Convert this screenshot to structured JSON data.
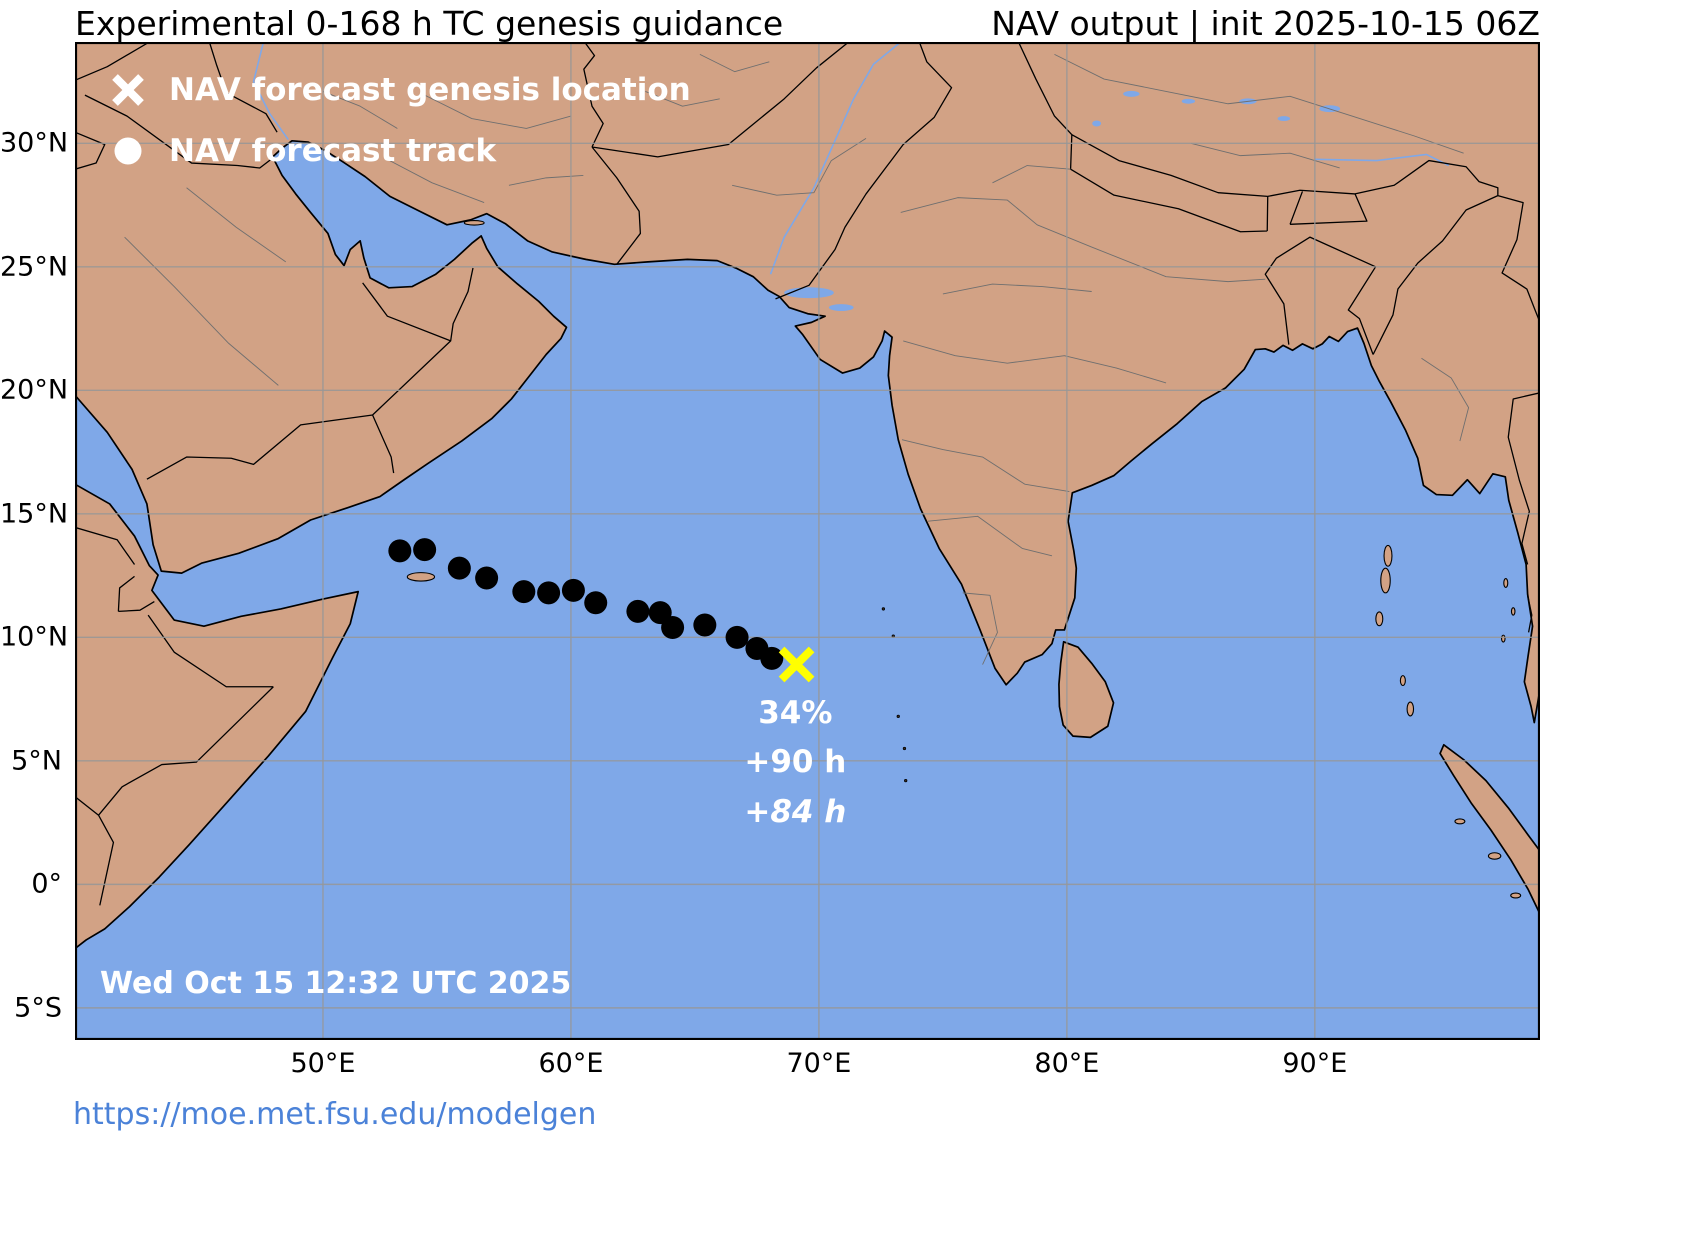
{
  "header": {
    "title": "Experimental 0-168 h TC genesis guidance",
    "right": "NAV output | init 2025-10-15 06Z"
  },
  "legend": {
    "genesis_label": "NAV forecast genesis location",
    "track_label": "NAV forecast track"
  },
  "annotations": {
    "probability": "34%",
    "genesis_hour": "+90 h",
    "track_hour": "+84 h",
    "timestamp": "Wed Oct 15 12:32 UTC 2025"
  },
  "footer": {
    "url": "https://moe.met.fsu.edu/modelgen"
  },
  "colors": {
    "ocean": "#7fa8e8",
    "land": "#d2a285",
    "grid": "#979797",
    "track": "#000000",
    "genesis_marker": "#ffff00",
    "legend_marker": "#ffffff",
    "link": "#4b82d8"
  },
  "map": {
    "extent": {
      "lon_min": 40.0,
      "lon_max": 99.08,
      "lat_min": -6.3,
      "lat_max": 34.1
    },
    "lat_ticks": [
      {
        "lat": 30,
        "text": "30°N"
      },
      {
        "lat": 25,
        "text": "25°N"
      },
      {
        "lat": 20,
        "text": "20°N"
      },
      {
        "lat": 15,
        "text": "15°N"
      },
      {
        "lat": 10,
        "text": "10°N"
      },
      {
        "lat": 5,
        "text": "5°N"
      },
      {
        "lat": 0,
        "text": "0°"
      },
      {
        "lat": -5,
        "text": "5°S"
      }
    ],
    "lon_ticks": [
      {
        "lon": 50,
        "text": "50°E"
      },
      {
        "lon": 60,
        "text": "60°E"
      },
      {
        "lon": 70,
        "text": "70°E"
      },
      {
        "lon": 80,
        "text": "80°E"
      },
      {
        "lon": 90,
        "text": "90°E"
      }
    ]
  },
  "chart_data": {
    "type": "scatter",
    "title": "Experimental 0-168 h TC genesis guidance",
    "subtitle": "NAV output | init 2025-10-15 06Z",
    "projection": "plate-carree",
    "region": "Arabian Sea / Bay of Bengal (Indian Ocean)",
    "series": [
      {
        "name": "NAV forecast track",
        "marker": "circle",
        "color": "#000000",
        "points_lon_lat": [
          [
            53.1,
            13.5
          ],
          [
            54.1,
            13.55
          ],
          [
            55.5,
            12.8
          ],
          [
            56.6,
            12.4
          ],
          [
            58.1,
            11.85
          ],
          [
            59.1,
            11.8
          ],
          [
            60.1,
            11.9
          ],
          [
            61.0,
            11.4
          ],
          [
            62.7,
            11.05
          ],
          [
            63.6,
            11.0
          ],
          [
            64.1,
            10.4
          ],
          [
            65.4,
            10.5
          ],
          [
            66.7,
            10.0
          ],
          [
            67.5,
            9.55
          ],
          [
            68.1,
            9.15
          ]
        ]
      },
      {
        "name": "NAV forecast genesis location",
        "marker": "x",
        "color": "#ffff00",
        "points_lon_lat": [
          [
            69.1,
            8.9
          ]
        ]
      }
    ],
    "labels": [
      {
        "text": "34%",
        "lon": 69.05,
        "lat": 6.95,
        "italic": false
      },
      {
        "text": "+90 h",
        "lon": 69.05,
        "lat": 4.95,
        "italic": false
      },
      {
        "text": "+84 h",
        "lon": 69.05,
        "lat": 2.93,
        "italic": true
      }
    ]
  }
}
